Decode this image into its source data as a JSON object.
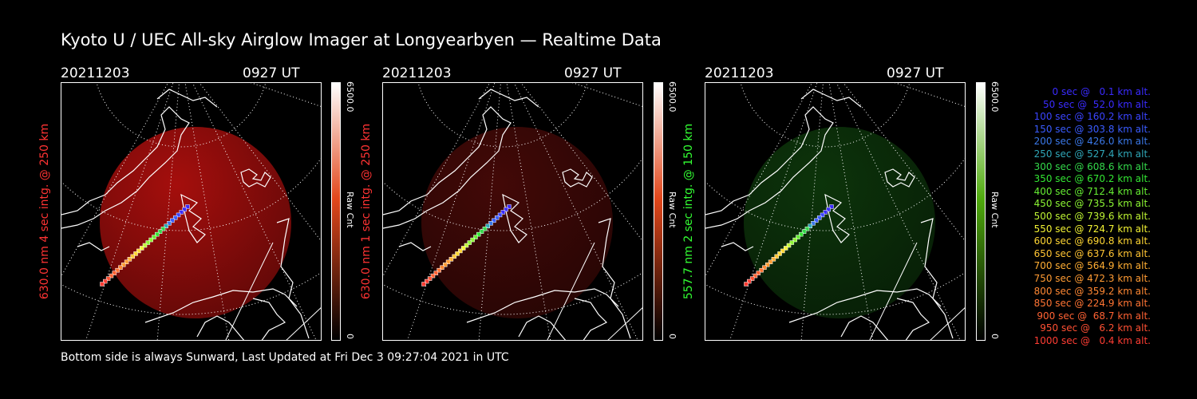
{
  "title": "Kyoto U / UEC All-sky Airglow Imager at Longyearbyen — Realtime Data",
  "panels": [
    {
      "date": "20211203",
      "time": "0927 UT",
      "ylabel": "630.0 nm 4 sec intg. @ 250 km",
      "color": "#ff3333",
      "glow": "#c2110f",
      "glow_opacity": 0.85,
      "cb_top": "#ffffff",
      "cb_mid": "#e2471b",
      "cb_bot": "#000000"
    },
    {
      "date": "20211203",
      "time": "0927 UT",
      "ylabel": "630.0 nm 1 sec intg. @ 250 km",
      "color": "#ff3333",
      "glow": "#4a0a08",
      "glow_opacity": 0.9,
      "cb_top": "#ffffff",
      "cb_mid": "#e2471b",
      "cb_bot": "#000000"
    },
    {
      "date": "20211203",
      "time": "0927 UT",
      "ylabel": "557.7 nm 2 sec intg. @ 150 km",
      "color": "#33ff33",
      "glow": "#0e3a0c",
      "glow_opacity": 0.9,
      "cb_top": "#ffffff",
      "cb_mid": "#4faa0d",
      "cb_bot": "#000000"
    }
  ],
  "colorbar": {
    "max": "6500.0",
    "min": "0",
    "unit": "Raw Cnt"
  },
  "legend": [
    {
      "text": "0 sec @   0.1 km alt.",
      "color": "#3a2bff"
    },
    {
      "text": "50 sec @  52.0 km alt.",
      "color": "#3a2bff"
    },
    {
      "text": "100 sec @ 160.2 km alt.",
      "color": "#3a44ff"
    },
    {
      "text": "150 sec @ 303.8 km alt.",
      "color": "#3a5cff"
    },
    {
      "text": "200 sec @ 426.0 km alt.",
      "color": "#3a78e8"
    },
    {
      "text": "250 sec @ 527.4 km alt.",
      "color": "#2fa7b8"
    },
    {
      "text": "300 sec @ 608.6 km alt.",
      "color": "#33d84a"
    },
    {
      "text": "350 sec @ 670.2 km alt.",
      "color": "#33e633"
    },
    {
      "text": "400 sec @ 712.4 km alt.",
      "color": "#66ee33"
    },
    {
      "text": "450 sec @ 735.5 km alt.",
      "color": "#8cf533"
    },
    {
      "text": "500 sec @ 739.6 km alt.",
      "color": "#bff533"
    },
    {
      "text": "550 sec @ 724.7 km alt.",
      "color": "#f2f233"
    },
    {
      "text": "600 sec @ 690.8 km alt.",
      "color": "#ffd633"
    },
    {
      "text": "650 sec @ 637.6 km alt.",
      "color": "#ffc433"
    },
    {
      "text": "700 sec @ 564.9 km alt.",
      "color": "#ffae33"
    },
    {
      "text": "750 sec @ 472.3 km alt.",
      "color": "#ff9b33"
    },
    {
      "text": "800 sec @ 359.2 km alt.",
      "color": "#ff8833"
    },
    {
      "text": "850 sec @ 224.9 km alt.",
      "color": "#ff7433"
    },
    {
      "text": "900 sec @  68.7 km alt.",
      "color": "#ff6233"
    },
    {
      "text": "950 sec @   6.2 km alt.",
      "color": "#ff5033"
    },
    {
      "text": "1000 sec @   0.4 km alt.",
      "color": "#ff3d33"
    }
  ],
  "footer": "Bottom side is always Sunward, Last Updated at Fri Dec  3 09:27:04 2021 in UTC"
}
